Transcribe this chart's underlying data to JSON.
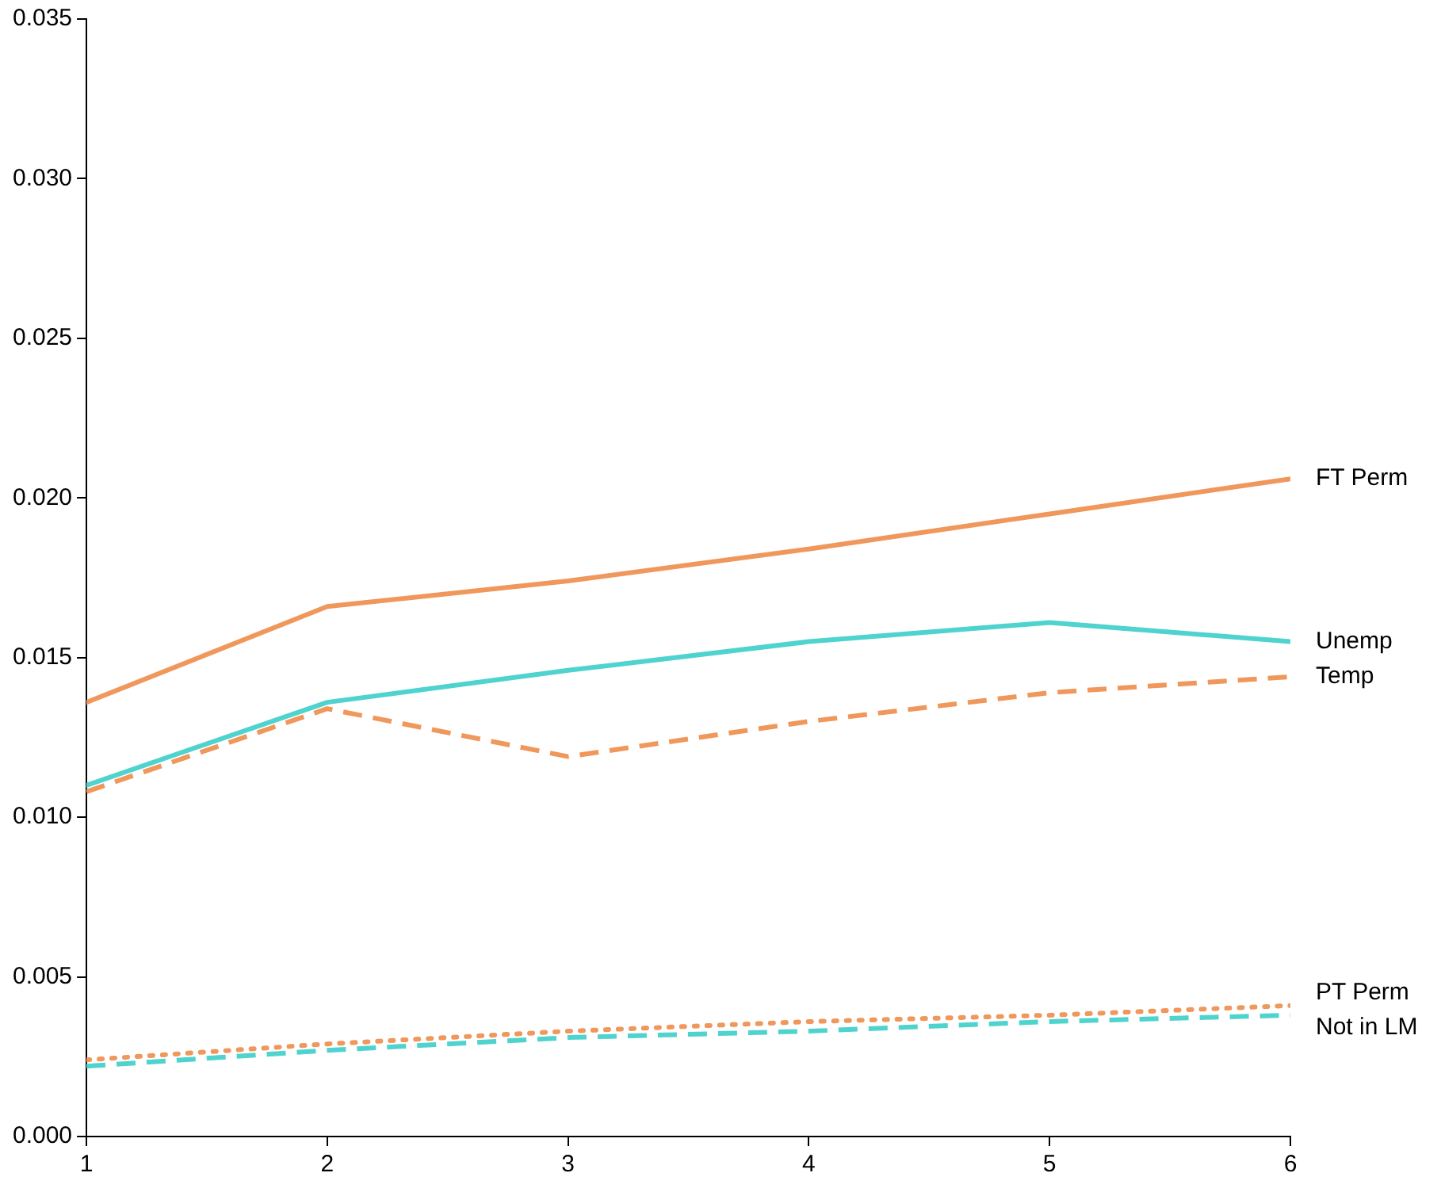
{
  "chart_data": {
    "type": "line",
    "x": [
      1,
      2,
      3,
      4,
      5,
      6
    ],
    "series": [
      {
        "name": "FT Perm",
        "color": "#f0975c",
        "line_style": "solid",
        "values": [
          0.0136,
          0.0166,
          0.0174,
          0.0184,
          0.0195,
          0.0206
        ]
      },
      {
        "name": "Unemp",
        "color": "#4fd3cf",
        "line_style": "solid",
        "values": [
          0.011,
          0.0136,
          0.0146,
          0.0155,
          0.0161,
          0.0155
        ]
      },
      {
        "name": "Temp",
        "color": "#f0975c",
        "line_style": "dashed",
        "values": [
          0.0108,
          0.0134,
          0.0119,
          0.013,
          0.0139,
          0.0144
        ]
      },
      {
        "name": "PT Perm",
        "color": "#f0975c",
        "line_style": "dotted",
        "values": [
          0.0024,
          0.0029,
          0.0033,
          0.0036,
          0.0038,
          0.0041
        ]
      },
      {
        "name": "Not in LM",
        "color": "#4fd3cf",
        "line_style": "dashed",
        "values": [
          0.0022,
          0.0027,
          0.0031,
          0.0033,
          0.0036,
          0.0038
        ]
      }
    ],
    "xlim": [
      1,
      6
    ],
    "xticks": [
      1,
      2,
      3,
      4,
      5,
      6
    ],
    "ylim": [
      0,
      0.035
    ],
    "yticks": [
      {
        "value": 0,
        "label": "0.000"
      },
      {
        "value": 0.005,
        "label": "0.005"
      },
      {
        "value": 0.01,
        "label": "0.010"
      },
      {
        "value": 0.015,
        "label": "0.015"
      },
      {
        "value": 0.02,
        "label": "0.020"
      },
      {
        "value": 0.025,
        "label": "0.025"
      },
      {
        "value": 0.03,
        "label": "0.030"
      },
      {
        "value": 0.035,
        "label": "0.035"
      }
    ],
    "grid": false,
    "legend": false,
    "marker": "none"
  }
}
